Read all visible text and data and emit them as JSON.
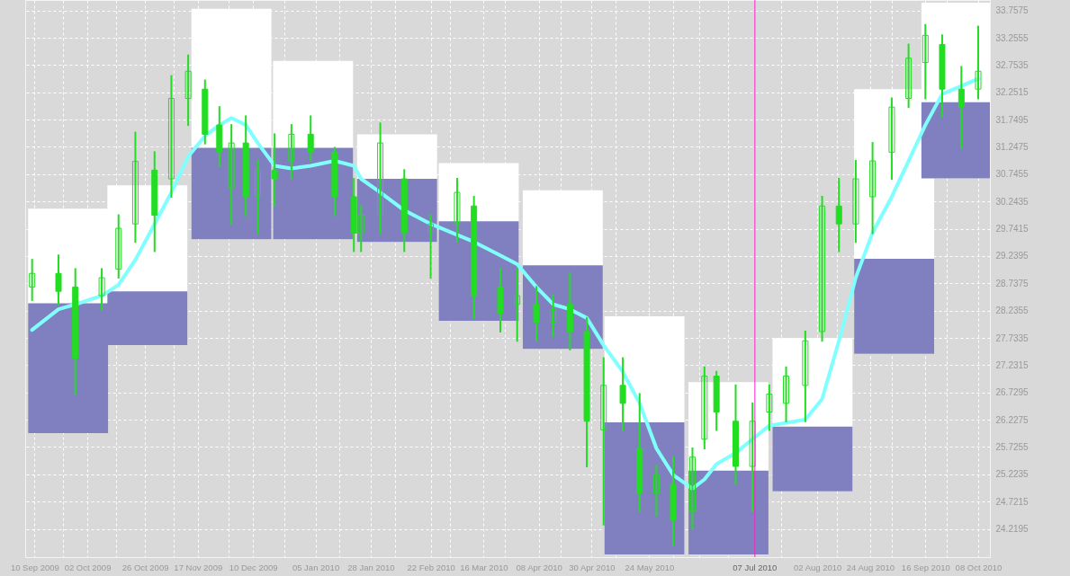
{
  "chart_data": {
    "type": "candlestick",
    "xlim": [
      "2009-09-08",
      "2010-10-11"
    ],
    "ylim": [
      23.7,
      33.95
    ],
    "yticks": [
      24.2195,
      24.7215,
      25.2235,
      25.7255,
      26.2275,
      26.7295,
      27.2315,
      27.7335,
      28.2355,
      28.7375,
      29.2395,
      29.7415,
      30.2435,
      30.7455,
      31.2475,
      31.7495,
      32.2515,
      32.7535,
      33.2555,
      33.7575
    ],
    "xticks": [
      {
        "value": "2009-09-10",
        "label": "10 Sep 2009"
      },
      {
        "value": "2009-09-22",
        "label": null
      },
      {
        "value": "2009-10-02",
        "label": "02 Oct 2009"
      },
      {
        "value": "2009-10-14",
        "label": null
      },
      {
        "value": "2009-10-26",
        "label": "26 Oct 2009"
      },
      {
        "value": "2009-11-07",
        "label": null
      },
      {
        "value": "2009-11-17",
        "label": "17 Nov 2009"
      },
      {
        "value": "2009-11-30",
        "label": null
      },
      {
        "value": "2009-12-10",
        "label": "10 Dec 2009"
      },
      {
        "value": "2009-12-23",
        "label": null
      },
      {
        "value": "2010-01-05",
        "label": "05 Jan 2010"
      },
      {
        "value": "2010-01-15",
        "label": null
      },
      {
        "value": "2010-01-28",
        "label": "28 Jan 2010"
      },
      {
        "value": "2010-02-07",
        "label": null
      },
      {
        "value": "2010-02-22",
        "label": "22 Feb 2010"
      },
      {
        "value": "2010-03-02",
        "label": null
      },
      {
        "value": "2010-03-16",
        "label": "16 Mar 2010"
      },
      {
        "value": "2010-03-25",
        "label": null
      },
      {
        "value": "2010-04-08",
        "label": "08 Apr 2010"
      },
      {
        "value": "2010-04-17",
        "label": null
      },
      {
        "value": "2010-04-30",
        "label": "30 Apr 2010"
      },
      {
        "value": "2010-05-10",
        "label": null
      },
      {
        "value": "2010-05-24",
        "label": "24 May 2010"
      },
      {
        "value": "2010-06-03",
        "label": null
      },
      {
        "value": "2010-06-14",
        "label": null
      },
      {
        "value": "2010-06-26",
        "label": null
      },
      {
        "value": "2010-07-18",
        "label": null
      },
      {
        "value": "2010-08-02",
        "label": "02 Aug 2010"
      },
      {
        "value": "2010-08-10",
        "label": null
      },
      {
        "value": "2010-08-24",
        "label": "24 Aug 2010"
      },
      {
        "value": "2010-09-02",
        "label": null
      },
      {
        "value": "2010-09-16",
        "label": "16 Sep 2010"
      },
      {
        "value": "2010-09-25",
        "label": null
      },
      {
        "value": "2010-10-08",
        "label": "08 Oct 2010"
      }
    ],
    "grid": true,
    "ref_lines": [
      {
        "axis": "x",
        "value": "2010-07-07",
        "label": "07 Jul 2010",
        "color": "#ff22cc"
      }
    ],
    "series": [
      {
        "type": "candlestick",
        "color": "#8080c0",
        "x": [
          "2009-09-24",
          "2009-10-27",
          "2009-12-01",
          "2010-01-04",
          "2010-02-08",
          "2010-03-14",
          "2010-04-18",
          "2010-05-22",
          "2010-06-26",
          "2010-07-31",
          "2010-09-03",
          "2010-10-01"
        ],
        "ohlc": [
          [
            28.37,
            30.11,
            25.98,
            25.98
          ],
          [
            28.59,
            30.54,
            27.6,
            27.6
          ],
          [
            31.23,
            33.79,
            29.55,
            29.55
          ],
          [
            31.23,
            32.83,
            29.55,
            29.55
          ],
          [
            30.66,
            31.48,
            29.5,
            29.5
          ],
          [
            29.88,
            30.95,
            28.05,
            28.05
          ],
          [
            29.07,
            30.45,
            27.53,
            27.53
          ],
          [
            26.18,
            28.13,
            23.75,
            23.75
          ],
          [
            25.29,
            26.92,
            23.75,
            23.75
          ],
          [
            26.1,
            27.73,
            24.91,
            24.91
          ],
          [
            29.19,
            32.31,
            27.44,
            27.44
          ],
          [
            32.07,
            33.9,
            30.67,
            30.67
          ]
        ]
      },
      {
        "type": "line",
        "color": "#80ffff",
        "x": [
          "2009-09-09",
          "2009-09-20",
          "2009-09-27",
          "2009-10-08",
          "2009-10-15",
          "2009-10-22",
          "2009-10-30",
          "2009-11-06",
          "2009-11-13",
          "2009-11-20",
          "2009-11-26",
          "2009-12-01",
          "2009-12-07",
          "2009-12-12",
          "2009-12-19",
          "2009-12-26",
          "2010-01-03",
          "2010-01-13",
          "2010-01-21",
          "2010-01-24",
          "2010-02-01",
          "2010-02-11",
          "2010-02-22",
          "2010-03-05",
          "2010-03-12",
          "2010-03-23",
          "2010-03-30",
          "2010-04-07",
          "2010-04-14",
          "2010-04-21",
          "2010-04-28",
          "2010-05-05",
          "2010-05-13",
          "2010-05-20",
          "2010-05-27",
          "2010-06-03",
          "2010-06-11",
          "2010-06-16",
          "2010-06-21",
          "2010-06-29",
          "2010-07-06",
          "2010-07-13",
          "2010-07-20",
          "2010-07-28",
          "2010-08-04",
          "2010-08-11",
          "2010-08-18",
          "2010-08-25",
          "2010-09-02",
          "2010-09-09",
          "2010-09-16",
          "2010-09-23",
          "2010-10-01",
          "2010-10-08"
        ],
        "values": [
          27.88,
          28.26,
          28.35,
          28.51,
          28.71,
          29.17,
          29.83,
          30.41,
          31.07,
          31.45,
          31.65,
          31.78,
          31.65,
          31.32,
          30.9,
          30.85,
          30.9,
          30.99,
          30.9,
          30.66,
          30.41,
          30.08,
          29.83,
          29.63,
          29.5,
          29.25,
          29.09,
          28.67,
          28.35,
          28.26,
          28.1,
          27.6,
          27.11,
          26.53,
          25.7,
          25.21,
          24.96,
          25.13,
          25.41,
          25.62,
          25.87,
          26.12,
          26.17,
          26.23,
          26.61,
          27.68,
          28.84,
          29.67,
          30.33,
          30.99,
          31.65,
          32.22,
          32.37,
          32.5
        ]
      },
      {
        "type": "candlestick",
        "color": "#22dd22",
        "x": [
          "2009-09-09",
          "2009-09-20",
          "2009-09-27",
          "2009-10-08",
          "2009-10-15",
          "2009-10-22",
          "2009-10-30",
          "2009-11-06",
          "2009-11-13",
          "2009-11-20",
          "2009-11-26",
          "2009-12-01",
          "2009-12-07",
          "2009-12-12",
          "2009-12-19",
          "2009-12-26",
          "2010-01-03",
          "2010-01-13",
          "2010-01-21",
          "2010-01-24",
          "2010-02-01",
          "2010-02-11",
          "2010-02-22",
          "2010-03-05",
          "2010-03-12",
          "2010-03-23",
          "2010-03-30",
          "2010-04-07",
          "2010-04-14",
          "2010-04-21",
          "2010-04-28",
          "2010-05-05",
          "2010-05-13",
          "2010-05-20",
          "2010-05-27",
          "2010-06-03",
          "2010-06-11",
          "2010-06-16",
          "2010-06-21",
          "2010-06-29",
          "2010-07-06",
          "2010-07-13",
          "2010-07-20",
          "2010-07-28",
          "2010-08-04",
          "2010-08-11",
          "2010-08-18",
          "2010-08-25",
          "2010-09-02",
          "2010-09-09",
          "2010-09-16",
          "2010-09-23",
          "2010-10-01",
          "2010-10-08"
        ],
        "ohlc": [
          [
            28.67,
            29.17,
            28.43,
            28.92
          ],
          [
            28.92,
            29.25,
            28.35,
            28.59
          ],
          [
            28.67,
            29.0,
            26.7,
            27.36
          ],
          [
            28.51,
            29.0,
            28.26,
            28.84
          ],
          [
            29.0,
            29.99,
            28.84,
            29.75
          ],
          [
            29.83,
            31.51,
            29.5,
            30.98
          ],
          [
            30.82,
            31.15,
            29.33,
            29.99
          ],
          [
            30.66,
            32.55,
            30.33,
            32.14
          ],
          [
            32.14,
            32.93,
            31.65,
            32.64
          ],
          [
            32.31,
            32.47,
            31.31,
            31.48
          ],
          [
            31.65,
            31.98,
            30.9,
            31.15
          ],
          [
            30.49,
            31.65,
            29.83,
            31.32
          ],
          [
            31.32,
            31.81,
            29.99,
            30.33
          ],
          [
            30.33,
            30.99,
            29.66,
            30.82
          ],
          [
            30.82,
            31.48,
            30.16,
            30.66
          ],
          [
            30.99,
            31.65,
            30.66,
            31.48
          ],
          [
            31.48,
            31.81,
            30.99,
            31.15
          ],
          [
            31.15,
            31.23,
            29.99,
            30.33
          ],
          [
            30.33,
            30.66,
            29.33,
            29.66
          ],
          [
            29.66,
            30.16,
            29.33,
            29.99
          ],
          [
            29.99,
            31.68,
            29.66,
            31.32
          ],
          [
            30.66,
            30.82,
            29.33,
            29.66
          ],
          [
            29.66,
            29.99,
            28.84,
            29.83
          ],
          [
            29.83,
            30.66,
            29.5,
            30.41
          ],
          [
            30.16,
            30.33,
            28.1,
            28.51
          ],
          [
            28.67,
            29.0,
            27.85,
            28.18
          ],
          [
            28.35,
            29.0,
            27.68,
            28.51
          ],
          [
            28.35,
            28.67,
            27.68,
            28.02
          ],
          [
            28.02,
            28.51,
            27.77,
            28.26
          ],
          [
            28.35,
            28.92,
            27.52,
            27.85
          ],
          [
            27.85,
            28.1,
            25.37,
            26.2
          ],
          [
            26.04,
            27.36,
            24.3,
            26.86
          ],
          [
            26.86,
            27.36,
            26.04,
            26.53
          ],
          [
            25.7,
            26.7,
            24.55,
            24.88
          ],
          [
            24.88,
            25.37,
            24.47,
            25.21
          ],
          [
            25.04,
            25.54,
            23.92,
            24.38
          ],
          [
            24.55,
            25.7,
            24.22,
            25.54
          ],
          [
            25.87,
            27.19,
            25.7,
            27.03
          ],
          [
            27.03,
            27.11,
            26.04,
            26.37
          ],
          [
            26.2,
            26.86,
            25.04,
            25.37
          ],
          [
            25.37,
            26.53,
            24.55,
            26.2
          ],
          [
            26.37,
            26.86,
            26.04,
            26.7
          ],
          [
            26.53,
            27.19,
            26.2,
            27.03
          ],
          [
            26.86,
            27.85,
            26.2,
            27.68
          ],
          [
            27.85,
            30.33,
            27.68,
            30.16
          ],
          [
            30.16,
            30.66,
            29.33,
            29.83
          ],
          [
            29.83,
            30.99,
            29.5,
            30.66
          ],
          [
            30.33,
            31.32,
            29.66,
            30.99
          ],
          [
            31.15,
            32.14,
            30.66,
            31.98
          ],
          [
            32.14,
            33.13,
            31.98,
            32.88
          ],
          [
            32.8,
            33.49,
            32.14,
            33.3
          ],
          [
            33.13,
            33.3,
            31.81,
            32.31
          ],
          [
            32.31,
            32.72,
            31.23,
            31.98
          ],
          [
            32.31,
            33.46,
            32.14,
            32.64
          ]
        ]
      }
    ]
  }
}
